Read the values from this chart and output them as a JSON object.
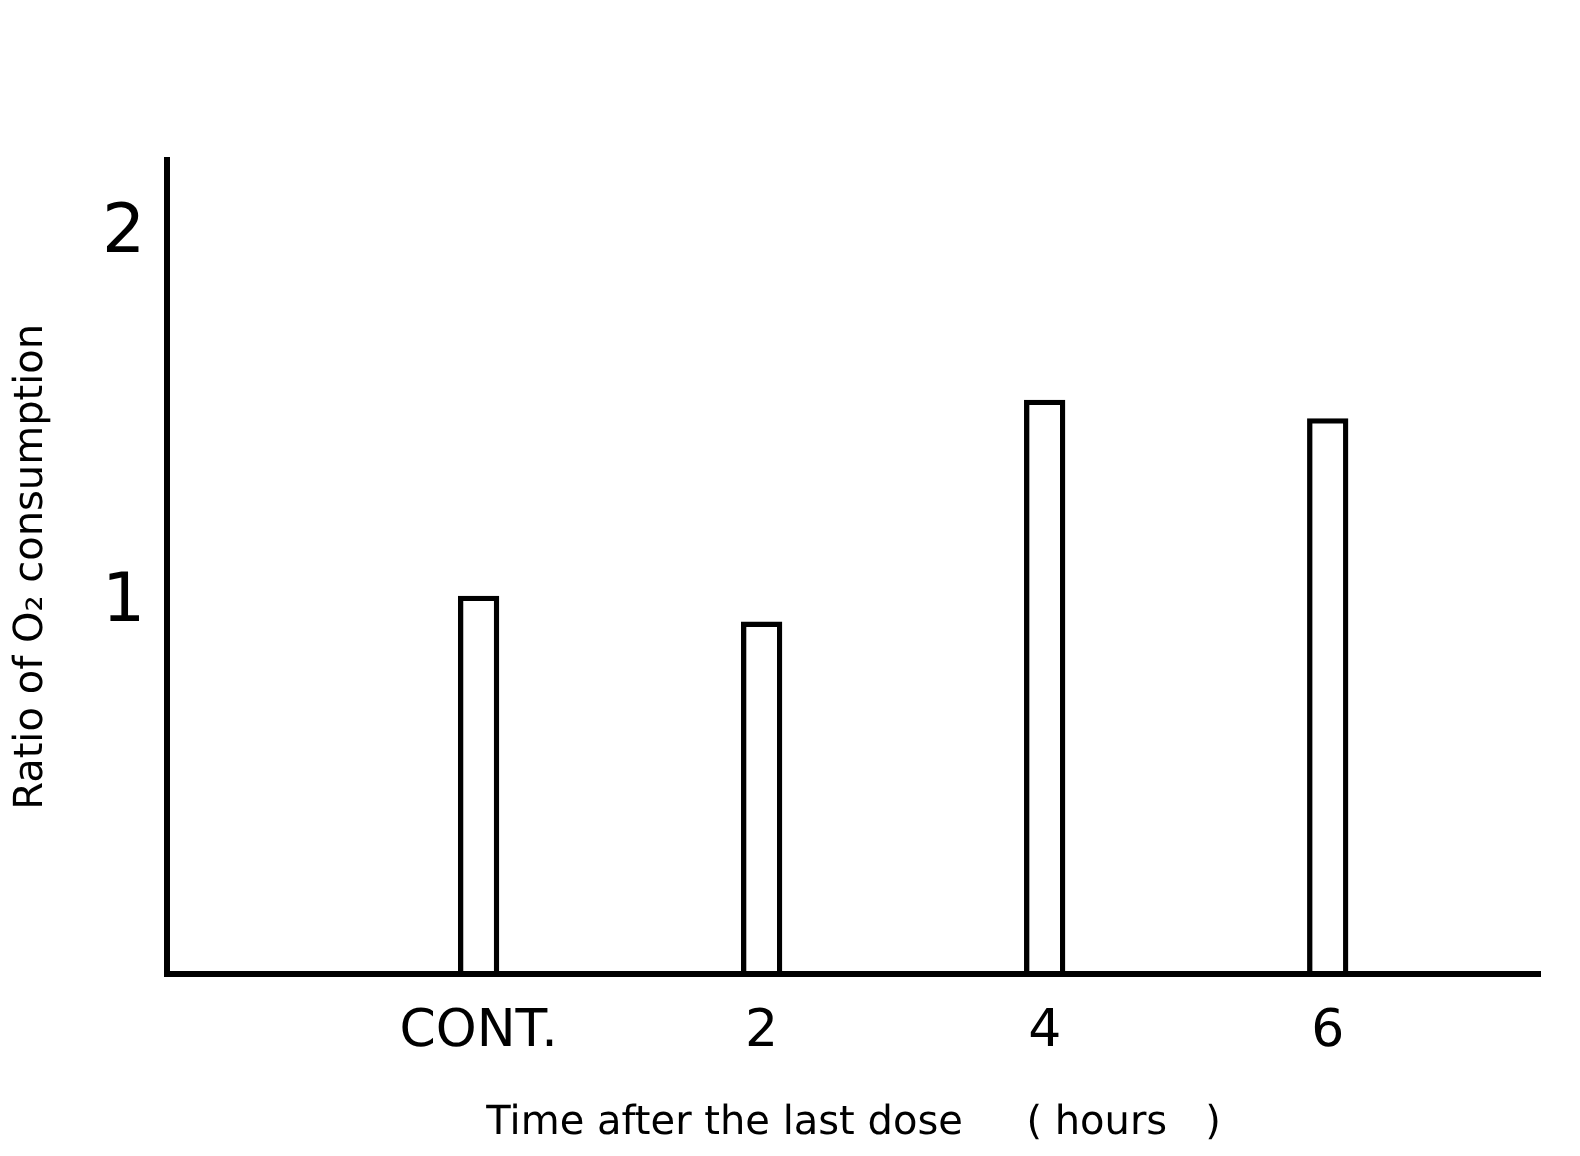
{
  "chart_data": {
    "type": "bar",
    "ylabel": "Ratio of O₂ consumption",
    "xlabel": "Time after the last dose     ( hours   )",
    "categories": [
      "CONT.",
      "2",
      "4",
      "6"
    ],
    "values": [
      1.02,
      0.95,
      1.55,
      1.5
    ],
    "color": "#000000",
    "ylim": [
      0,
      2.2
    ],
    "yticks": [
      1,
      2
    ],
    "grid": false,
    "legend": false
  }
}
